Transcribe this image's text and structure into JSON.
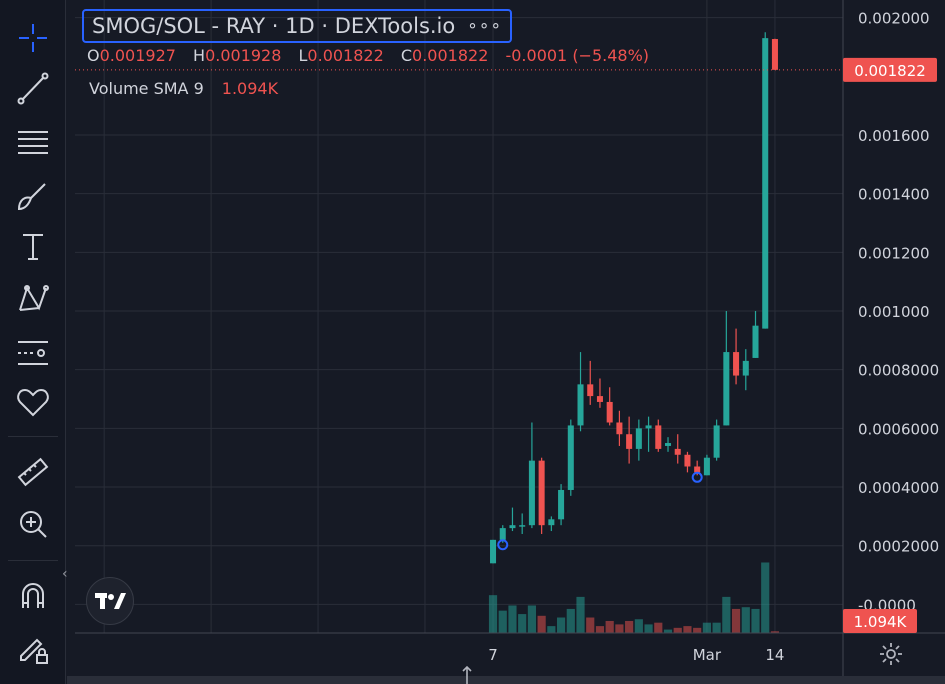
{
  "legend": {
    "title": "SMOG/SOL - RAY · 1D · DEXTools.io",
    "more": "∘∘∘",
    "ohlc": [
      {
        "k": "O",
        "v": "0.001927"
      },
      {
        "k": "H",
        "v": "0.001928"
      },
      {
        "k": "L",
        "v": "0.001822"
      },
      {
        "k": "C",
        "v": "0.001822"
      }
    ],
    "change": "-0.0001 (−5.48%)",
    "volume_label": "Volume SMA 9",
    "volume_value": "1.094K"
  },
  "toolbar": {
    "tools": [
      "crosshair-icon",
      "trend-line-icon",
      "fib-lines-icon",
      "brush-icon",
      "text-icon",
      "pattern-icon",
      "forecast-icon",
      "heart-icon",
      "ruler-icon",
      "zoom-in-icon",
      "magnet-icon",
      "lock-pencil-icon"
    ]
  },
  "colors": {
    "background": "#161a25",
    "up": "#26a69a",
    "down": "#ef5350",
    "grid": "#2a2e39",
    "accent": "#2962ff",
    "text": "#d1d4dc"
  },
  "chart_data": {
    "type": "candlestick",
    "yaxis": {
      "ticks": [
        -0.0,
        0.0002,
        0.0004,
        0.0006,
        0.0008,
        0.001,
        0.0012,
        0.0014,
        0.0016,
        0.002
      ],
      "tick_labels": [
        "-0.0000",
        "0.0002000",
        "0.0004000",
        "0.0006000",
        "0.0008000",
        "0.001000",
        "0.001200",
        "0.001400",
        "0.001600",
        "0.002000"
      ],
      "range": [
        -6e-05,
        0.00206
      ]
    },
    "xaxis": {
      "tick_labels": [
        {
          "label": "7",
          "index": 0
        },
        {
          "label": "Mar",
          "index": 22
        },
        {
          "label": "14",
          "index": 29
        }
      ],
      "range": [
        -43,
        36
      ]
    },
    "price_label": "0.001822",
    "volume_label": "1.094K",
    "candles": [
      {
        "o": 0.00014,
        "h": 0.00022,
        "l": 0.00014,
        "c": 0.00022,
        "v": 0.22
      },
      {
        "o": 0.00022,
        "h": 0.00027,
        "l": 0.00021,
        "c": 0.00026,
        "v": 0.13
      },
      {
        "o": 0.00026,
        "h": 0.00033,
        "l": 0.00025,
        "c": 0.00027,
        "v": 0.16
      },
      {
        "o": 0.00027,
        "h": 0.00031,
        "l": 0.00024,
        "c": 0.00027,
        "v": 0.11
      },
      {
        "o": 0.00027,
        "h": 0.00062,
        "l": 0.00026,
        "c": 0.00049,
        "v": 0.16
      },
      {
        "o": 0.00049,
        "h": 0.0005,
        "l": 0.00024,
        "c": 0.00027,
        "v": 0.1
      },
      {
        "o": 0.00027,
        "h": 0.0003,
        "l": 0.00025,
        "c": 0.00029,
        "v": 0.04
      },
      {
        "o": 0.00029,
        "h": 0.00041,
        "l": 0.00027,
        "c": 0.00039,
        "v": 0.09
      },
      {
        "o": 0.00039,
        "h": 0.00063,
        "l": 0.00037,
        "c": 0.00061,
        "v": 0.14
      },
      {
        "o": 0.00061,
        "h": 0.00086,
        "l": 0.00059,
        "c": 0.00075,
        "v": 0.21
      },
      {
        "o": 0.00075,
        "h": 0.00083,
        "l": 0.00068,
        "c": 0.00071,
        "v": 0.09
      },
      {
        "o": 0.00071,
        "h": 0.00077,
        "l": 0.00067,
        "c": 0.00069,
        "v": 0.04
      },
      {
        "o": 0.00069,
        "h": 0.00074,
        "l": 0.00061,
        "c": 0.00062,
        "v": 0.07
      },
      {
        "o": 0.00062,
        "h": 0.00066,
        "l": 0.00054,
        "c": 0.00058,
        "v": 0.05
      },
      {
        "o": 0.00058,
        "h": 0.00064,
        "l": 0.00048,
        "c": 0.00053,
        "v": 0.07
      },
      {
        "o": 0.00053,
        "h": 0.00063,
        "l": 0.00049,
        "c": 0.0006,
        "v": 0.08
      },
      {
        "o": 0.0006,
        "h": 0.00064,
        "l": 0.00052,
        "c": 0.00061,
        "v": 0.05
      },
      {
        "o": 0.00061,
        "h": 0.00063,
        "l": 0.00052,
        "c": 0.00053,
        "v": 0.06
      },
      {
        "o": 0.00054,
        "h": 0.00057,
        "l": 0.00052,
        "c": 0.00055,
        "v": 0.02
      },
      {
        "o": 0.00053,
        "h": 0.00058,
        "l": 0.00048,
        "c": 0.00051,
        "v": 0.03
      },
      {
        "o": 0.00051,
        "h": 0.00052,
        "l": 0.00045,
        "c": 0.00047,
        "v": 0.04
      },
      {
        "o": 0.00047,
        "h": 0.00049,
        "l": 0.00044,
        "c": 0.00045,
        "v": 0.03
      },
      {
        "o": 0.00044,
        "h": 0.00051,
        "l": 0.00044,
        "c": 0.0005,
        "v": 0.06
      },
      {
        "o": 0.0005,
        "h": 0.00063,
        "l": 0.00049,
        "c": 0.00061,
        "v": 0.06
      },
      {
        "o": 0.00061,
        "h": 0.001,
        "l": 0.00061,
        "c": 0.00086,
        "v": 0.21
      },
      {
        "o": 0.00086,
        "h": 0.00094,
        "l": 0.00075,
        "c": 0.00078,
        "v": 0.14
      },
      {
        "o": 0.00078,
        "h": 0.00087,
        "l": 0.00073,
        "c": 0.00083,
        "v": 0.15
      },
      {
        "o": 0.00084,
        "h": 0.001,
        "l": 0.00084,
        "c": 0.00095,
        "v": 0.14
      },
      {
        "o": 0.00094,
        "h": 0.00195,
        "l": 0.00094,
        "c": 0.00193,
        "v": 0.41
      },
      {
        "o": 0.001927,
        "h": 0.001928,
        "l": 0.001822,
        "c": 0.001822,
        "v": 0.01
      }
    ],
    "markers": [
      {
        "index": 1,
        "at": "low"
      },
      {
        "index": 21,
        "at": "low"
      }
    ]
  }
}
